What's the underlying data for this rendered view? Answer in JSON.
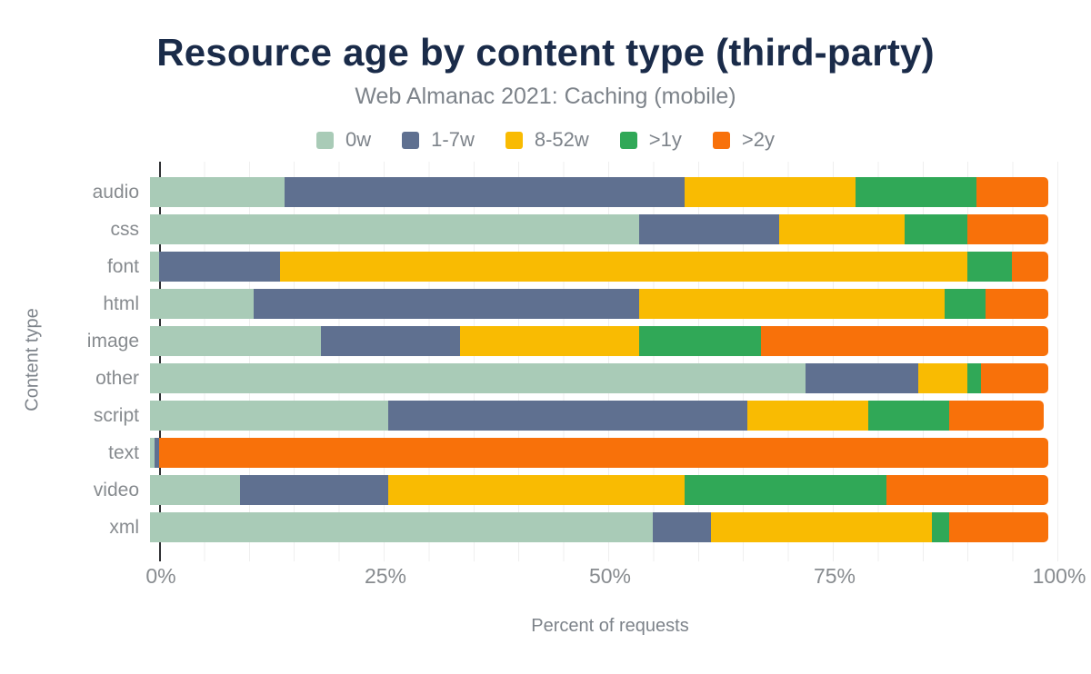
{
  "title": "Resource age by content type (third-party)",
  "subtitle": "Web Almanac 2021: Caching (mobile)",
  "colors": {
    "title": "#1a2b49",
    "muted_text": "#7d838a",
    "axis_line": "#2f3033",
    "gridline": "#efefef"
  },
  "chart_data": {
    "type": "bar",
    "orientation": "horizontal",
    "stacked": true,
    "grid": "vertical gridlines every 5%",
    "legend_position": "top",
    "xlabel": "Percent of requests",
    "ylabel": "Content type",
    "xlim": [
      0,
      100
    ],
    "x_ticks": [
      "0%",
      "25%",
      "50%",
      "75%",
      "100%"
    ],
    "categories": [
      "audio",
      "css",
      "font",
      "html",
      "image",
      "other",
      "script",
      "text",
      "video",
      "xml"
    ],
    "series": [
      {
        "name": "0w",
        "color": "#a9cbb7",
        "values": [
          15,
          54.5,
          1,
          11.5,
          19,
          73,
          26.5,
          0.5,
          10,
          56
        ]
      },
      {
        "name": "1-7w",
        "color": "#5f7090",
        "values": [
          44.5,
          15.5,
          13.5,
          43,
          15.5,
          12.5,
          40,
          0.5,
          16.5,
          6.5
        ]
      },
      {
        "name": "8-52w",
        "color": "#f9bb02",
        "values": [
          19,
          14,
          76.5,
          34,
          20,
          5.5,
          13.5,
          0,
          33,
          24.5
        ]
      },
      {
        "name": ">1y",
        "color": "#30a857",
        "values": [
          13.5,
          7,
          5,
          4.5,
          13.5,
          1.5,
          9,
          0,
          22.5,
          2
        ]
      },
      {
        "name": ">2y",
        "color": "#f8710a",
        "values": [
          8,
          9,
          4,
          7,
          32,
          7.5,
          10.5,
          99,
          18,
          11
        ]
      }
    ]
  }
}
